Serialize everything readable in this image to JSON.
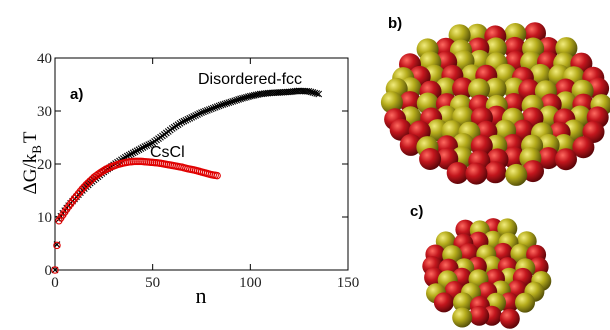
{
  "colors": {
    "disordered_fcc": "#000000",
    "cscl": "#e00000",
    "sphere_red": "#b3121b",
    "sphere_yellow": "#b9b21e"
  },
  "panels": {
    "a": "a)",
    "b": "b)",
    "c": "c)"
  },
  "chart_data": {
    "type": "scatter",
    "xlabel": "n",
    "ylabel_main": "ΔG/k",
    "ylabel_sub": "B",
    "ylabel_tail": "T",
    "xlim": [
      0,
      150
    ],
    "ylim": [
      0,
      40
    ],
    "xticks": [
      0,
      50,
      100,
      150
    ],
    "yticks": [
      0,
      10,
      20,
      30,
      40
    ],
    "grid": false,
    "series": [
      {
        "name": "Disordered-fcc",
        "marker": "x",
        "x": [
          0,
          2,
          4,
          6,
          8,
          10,
          12,
          14,
          16,
          18,
          20,
          22,
          25,
          28,
          31,
          34,
          37,
          40,
          43,
          46,
          50,
          55,
          60,
          65,
          70,
          75,
          80,
          85,
          90,
          95,
          100,
          105,
          110,
          115,
          120,
          125,
          130,
          135
        ],
        "y": [
          0,
          9.6,
          10.7,
          11.7,
          12.6,
          13.4,
          14.2,
          15.0,
          15.7,
          16.4,
          17.0,
          17.6,
          18.5,
          19.3,
          20.1,
          20.8,
          21.5,
          22.1,
          22.7,
          23.3,
          24.0,
          25.3,
          26.7,
          27.9,
          28.8,
          29.7,
          30.4,
          31.1,
          31.7,
          32.3,
          32.8,
          33.2,
          33.4,
          33.5,
          33.6,
          33.8,
          33.7,
          33.2
        ]
      },
      {
        "name": "CsCl",
        "marker": "circle",
        "x": [
          0,
          2,
          4,
          6,
          8,
          10,
          12,
          14,
          16,
          18,
          20,
          23,
          26,
          29,
          32,
          35,
          38,
          41,
          44,
          47,
          50,
          53,
          56,
          59,
          62,
          65,
          68,
          71,
          74,
          77,
          80,
          83
        ],
        "y": [
          0,
          9.3,
          10.4,
          11.5,
          12.5,
          13.5,
          14.4,
          15.3,
          16.1,
          16.8,
          17.5,
          18.3,
          19.0,
          19.5,
          19.9,
          20.2,
          20.4,
          20.5,
          20.5,
          20.4,
          20.3,
          20.2,
          20.0,
          19.8,
          19.6,
          19.4,
          19.1,
          18.9,
          18.6,
          18.3,
          18.0,
          17.8
        ]
      }
    ],
    "series_labels": [
      "Disordered-fcc",
      "CsCl"
    ]
  }
}
